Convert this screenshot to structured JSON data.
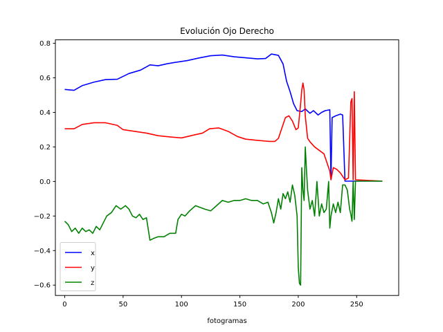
{
  "chart_data": {
    "type": "line",
    "title": "Evolución Ojo Derecho",
    "xlabel": "fotogramas",
    "ylabel": "",
    "xlim": [
      -8,
      286
    ],
    "ylim": [
      -0.66,
      0.82
    ],
    "xticks": [
      0,
      50,
      100,
      150,
      200,
      250
    ],
    "yticks": [
      -0.6,
      -0.4,
      -0.2,
      0.0,
      0.2,
      0.4,
      0.6,
      0.8
    ],
    "ytick_labels": [
      "−0.6",
      "−0.4",
      "−0.2",
      "0.0",
      "0.2",
      "0.4",
      "0.6",
      "0.8"
    ],
    "grid": false,
    "legend_position": "lower-left",
    "series": [
      {
        "name": "x",
        "color": "#0000ff",
        "points": [
          [
            0,
            0.533
          ],
          [
            8,
            0.528
          ],
          [
            15,
            0.555
          ],
          [
            25,
            0.575
          ],
          [
            35,
            0.59
          ],
          [
            45,
            0.592
          ],
          [
            55,
            0.625
          ],
          [
            65,
            0.645
          ],
          [
            73,
            0.675
          ],
          [
            80,
            0.67
          ],
          [
            88,
            0.682
          ],
          [
            95,
            0.69
          ],
          [
            105,
            0.7
          ],
          [
            115,
            0.715
          ],
          [
            125,
            0.728
          ],
          [
            135,
            0.732
          ],
          [
            145,
            0.722
          ],
          [
            155,
            0.716
          ],
          [
            165,
            0.71
          ],
          [
            172,
            0.712
          ],
          [
            177,
            0.738
          ],
          [
            183,
            0.73
          ],
          [
            187,
            0.68
          ],
          [
            190,
            0.58
          ],
          [
            193,
            0.52
          ],
          [
            196,
            0.45
          ],
          [
            199,
            0.41
          ],
          [
            203,
            0.405
          ],
          [
            206,
            0.42
          ],
          [
            210,
            0.395
          ],
          [
            213,
            0.41
          ],
          [
            217,
            0.385
          ],
          [
            220,
            0.4
          ],
          [
            223,
            0.41
          ],
          [
            227,
            0.415
          ],
          [
            228,
            0.01
          ],
          [
            229,
            0.37
          ],
          [
            232,
            0.38
          ],
          [
            236,
            0.39
          ],
          [
            238,
            0.385
          ],
          [
            240,
            0.002
          ],
          [
            272,
            0.002
          ]
        ]
      },
      {
        "name": "y",
        "color": "#ff0000",
        "points": [
          [
            0,
            0.305
          ],
          [
            8,
            0.305
          ],
          [
            15,
            0.33
          ],
          [
            25,
            0.34
          ],
          [
            35,
            0.34
          ],
          [
            45,
            0.325
          ],
          [
            50,
            0.3
          ],
          [
            60,
            0.29
          ],
          [
            70,
            0.28
          ],
          [
            80,
            0.265
          ],
          [
            90,
            0.258
          ],
          [
            100,
            0.252
          ],
          [
            110,
            0.268
          ],
          [
            118,
            0.28
          ],
          [
            124,
            0.305
          ],
          [
            132,
            0.31
          ],
          [
            140,
            0.29
          ],
          [
            148,
            0.26
          ],
          [
            155,
            0.245
          ],
          [
            165,
            0.238
          ],
          [
            175,
            0.232
          ],
          [
            180,
            0.232
          ],
          [
            183,
            0.25
          ],
          [
            186,
            0.31
          ],
          [
            189,
            0.37
          ],
          [
            192,
            0.38
          ],
          [
            195,
            0.35
          ],
          [
            198,
            0.3
          ],
          [
            200,
            0.31
          ],
          [
            202,
            0.45
          ],
          [
            203,
            0.53
          ],
          [
            204,
            0.57
          ],
          [
            205,
            0.53
          ],
          [
            206,
            0.38
          ],
          [
            208,
            0.25
          ],
          [
            210,
            0.23
          ],
          [
            214,
            0.2
          ],
          [
            218,
            0.18
          ],
          [
            222,
            0.16
          ],
          [
            225,
            0.1
          ],
          [
            227,
            0.06
          ],
          [
            228,
            0.01
          ],
          [
            230,
            0.08
          ],
          [
            233,
            0.07
          ],
          [
            236,
            0.05
          ],
          [
            240,
            0.01
          ],
          [
            243,
            0.02
          ],
          [
            245,
            0.46
          ],
          [
            246,
            0.48
          ],
          [
            247,
            0.01
          ],
          [
            248,
            0.52
          ],
          [
            249,
            0.01
          ],
          [
            272,
            0.002
          ]
        ]
      },
      {
        "name": "z",
        "color": "#008000",
        "points": [
          [
            0,
            -0.23
          ],
          [
            3,
            -0.25
          ],
          [
            6,
            -0.29
          ],
          [
            9,
            -0.27
          ],
          [
            12,
            -0.3
          ],
          [
            15,
            -0.27
          ],
          [
            18,
            -0.29
          ],
          [
            21,
            -0.28
          ],
          [
            24,
            -0.3
          ],
          [
            27,
            -0.26
          ],
          [
            30,
            -0.28
          ],
          [
            33,
            -0.24
          ],
          [
            36,
            -0.2
          ],
          [
            40,
            -0.18
          ],
          [
            44,
            -0.14
          ],
          [
            48,
            -0.16
          ],
          [
            52,
            -0.14
          ],
          [
            55,
            -0.16
          ],
          [
            58,
            -0.2
          ],
          [
            61,
            -0.21
          ],
          [
            64,
            -0.19
          ],
          [
            67,
            -0.22
          ],
          [
            70,
            -0.21
          ],
          [
            73,
            -0.34
          ],
          [
            76,
            -0.33
          ],
          [
            80,
            -0.32
          ],
          [
            85,
            -0.32
          ],
          [
            90,
            -0.3
          ],
          [
            95,
            -0.3
          ],
          [
            97,
            -0.22
          ],
          [
            100,
            -0.19
          ],
          [
            103,
            -0.2
          ],
          [
            107,
            -0.17
          ],
          [
            112,
            -0.14
          ],
          [
            116,
            -0.15
          ],
          [
            120,
            -0.16
          ],
          [
            125,
            -0.17
          ],
          [
            130,
            -0.14
          ],
          [
            135,
            -0.11
          ],
          [
            140,
            -0.12
          ],
          [
            145,
            -0.11
          ],
          [
            150,
            -0.11
          ],
          [
            155,
            -0.1
          ],
          [
            160,
            -0.11
          ],
          [
            165,
            -0.11
          ],
          [
            170,
            -0.13
          ],
          [
            174,
            -0.12
          ],
          [
            177,
            -0.18
          ],
          [
            179,
            -0.24
          ],
          [
            181,
            -0.18
          ],
          [
            183,
            -0.1
          ],
          [
            185,
            -0.16
          ],
          [
            187,
            -0.07
          ],
          [
            189,
            -0.1
          ],
          [
            191,
            -0.06
          ],
          [
            193,
            -0.12
          ],
          [
            195,
            -0.02
          ],
          [
            197,
            -0.08
          ],
          [
            199,
            -0.2
          ],
          [
            200,
            -0.5
          ],
          [
            201,
            -0.59
          ],
          [
            202,
            -0.6
          ],
          [
            203,
            0.08
          ],
          [
            204,
            -0.05
          ],
          [
            205,
            -0.11
          ],
          [
            206,
            0.2
          ],
          [
            207,
            0.07
          ],
          [
            208,
            -0.05
          ],
          [
            210,
            -0.16
          ],
          [
            212,
            -0.11
          ],
          [
            214,
            -0.2
          ],
          [
            216,
            0.0
          ],
          [
            218,
            -0.2
          ],
          [
            220,
            -0.13
          ],
          [
            222,
            -0.18
          ],
          [
            224,
            -0.16
          ],
          [
            226,
            0.0
          ],
          [
            227,
            -0.27
          ],
          [
            228,
            -0.2
          ],
          [
            230,
            -0.13
          ],
          [
            232,
            -0.18
          ],
          [
            234,
            -0.12
          ],
          [
            236,
            -0.18
          ],
          [
            238,
            -0.02
          ],
          [
            240,
            -0.02
          ],
          [
            242,
            -0.05
          ],
          [
            244,
            -0.16
          ],
          [
            245,
            -0.19
          ],
          [
            246,
            -0.23
          ],
          [
            247,
            0.0
          ],
          [
            248,
            -0.22
          ],
          [
            249,
            0.002
          ],
          [
            272,
            0.002
          ]
        ]
      }
    ]
  }
}
